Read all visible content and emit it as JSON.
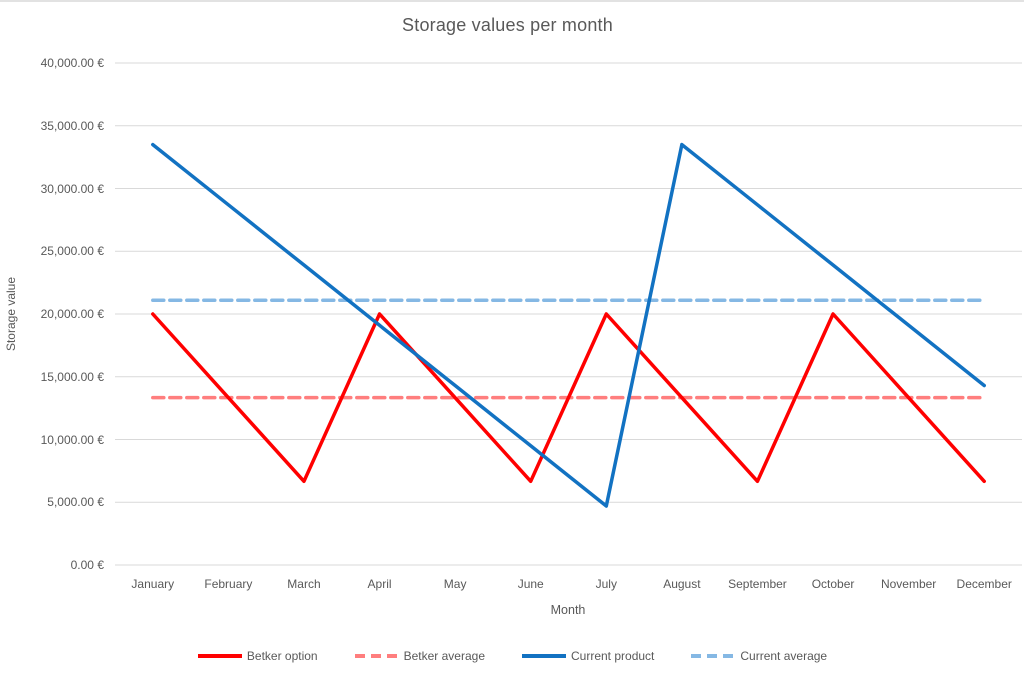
{
  "chart_data": {
    "type": "line",
    "title": "Storage values per month",
    "xlabel": "Month",
    "ylabel": "Storage value",
    "categories": [
      "January",
      "February",
      "March",
      "April",
      "May",
      "June",
      "July",
      "August",
      "September",
      "October",
      "November",
      "December"
    ],
    "y_axis": {
      "min": 0,
      "max": 40000,
      "step": 5000,
      "tick_labels": [
        "0.00 €",
        "5,000.00 €",
        "10,000.00 €",
        "15,000.00 €",
        "20,000.00 €",
        "25,000.00 €",
        "30,000.00 €",
        "35,000.00 €",
        "40,000.00 €"
      ]
    },
    "grid": true,
    "legend_position": "bottom",
    "series": [
      {
        "name": "Betker option",
        "color": "#FF0000",
        "style": "solid",
        "values": [
          20000,
          13333,
          6667,
          20000,
          13333,
          6667,
          20000,
          13333,
          6667,
          20000,
          13333,
          6667
        ]
      },
      {
        "name": "Betker average",
        "color": "#FF7E7E",
        "style": "dashed",
        "values": [
          13333,
          13333,
          13333,
          13333,
          13333,
          13333,
          13333,
          13333,
          13333,
          13333,
          13333,
          13333
        ]
      },
      {
        "name": "Current product",
        "color": "#1272C2",
        "style": "solid",
        "values": [
          33500,
          28700,
          23900,
          19100,
          14300,
          9500,
          4700,
          33500,
          28700,
          23900,
          19100,
          14300
        ]
      },
      {
        "name": "Current average",
        "color": "#85B8E4",
        "style": "dashed",
        "values": [
          21100,
          21100,
          21100,
          21100,
          21100,
          21100,
          21100,
          21100,
          21100,
          21100,
          21100,
          21100
        ]
      }
    ]
  },
  "colors": {
    "grid": "#D9D9D9",
    "text": "#595959",
    "background": "#FFFFFF",
    "top_border": "#E2E2E2"
  }
}
